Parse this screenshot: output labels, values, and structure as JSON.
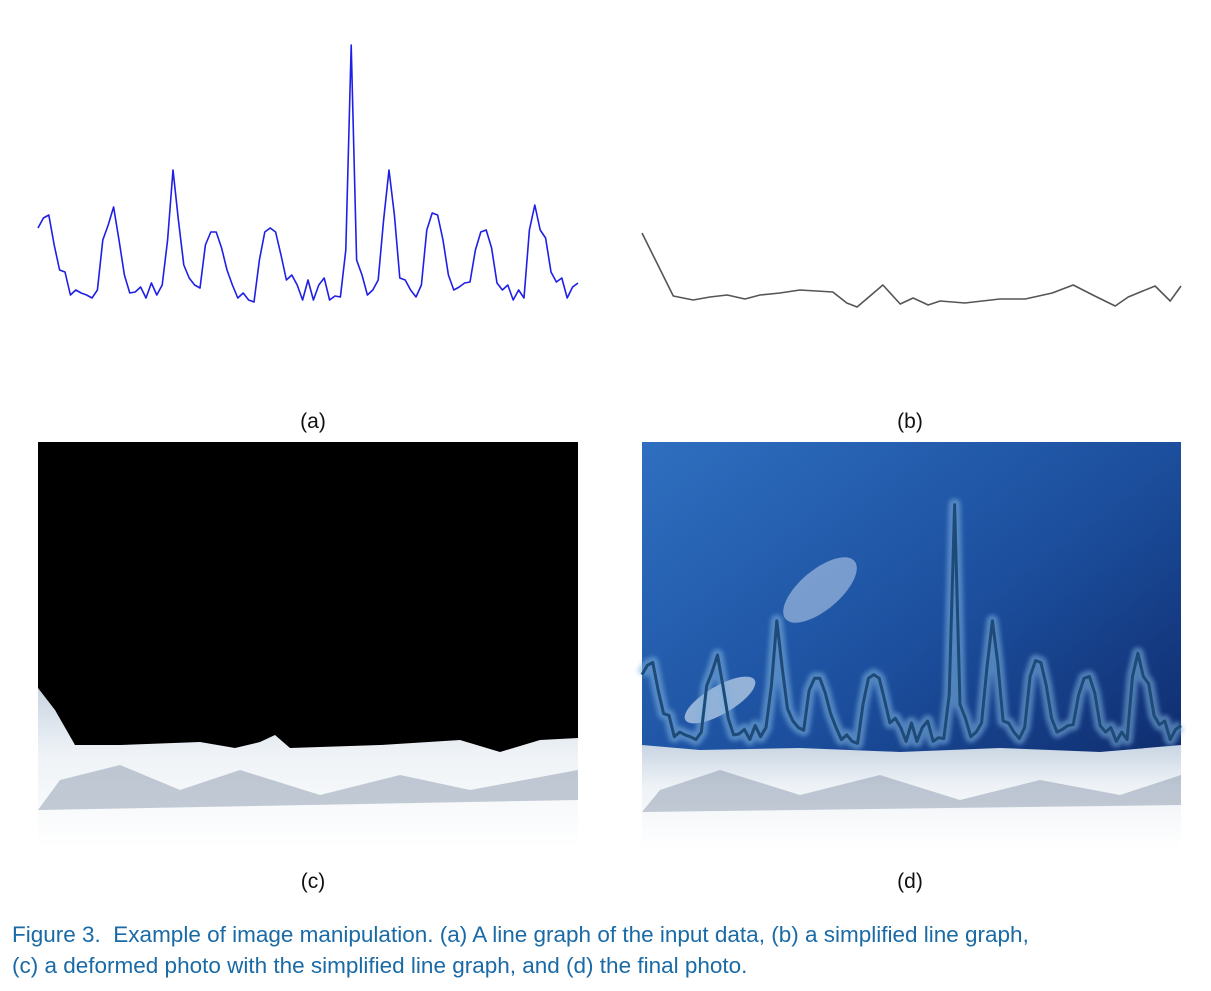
{
  "chart_data": [
    {
      "type": "line",
      "color": "#1f1fe6",
      "values": [
        92,
        102,
        105,
        75,
        50,
        48,
        25,
        30,
        27,
        25,
        22,
        30,
        80,
        95,
        113,
        80,
        45,
        27,
        28,
        33,
        22,
        37,
        25,
        35,
        80,
        150,
        100,
        55,
        42,
        35,
        32,
        75,
        88,
        88,
        72,
        50,
        35,
        22,
        27,
        20,
        18,
        60,
        88,
        92,
        88,
        65,
        40,
        45,
        35,
        20,
        40,
        20,
        35,
        42,
        20,
        24,
        23,
        70,
        275,
        60,
        45,
        25,
        30,
        40,
        100,
        150,
        105,
        42,
        40,
        30,
        23,
        35,
        90,
        107,
        105,
        80,
        45,
        30,
        33,
        37,
        38,
        70,
        88,
        90,
        72,
        37,
        30,
        35,
        20,
        30,
        22,
        90,
        115,
        90,
        82,
        48,
        38,
        42,
        22,
        33,
        37
      ],
      "ylim": [
        0,
        280
      ]
    },
    {
      "type": "line",
      "color": "#555555",
      "x": [
        0,
        5.8,
        9.5,
        12.6,
        15.8,
        19.1,
        21.9,
        25.6,
        29.3,
        35.4,
        38.0,
        39.9,
        44.7,
        47.9,
        50.3,
        53.1,
        55.3,
        59.9,
        66.4,
        71.1,
        76.1,
        80.0,
        84.0,
        87.8,
        90.2,
        95.2,
        98.0,
        100
      ],
      "values": [
        87,
        24,
        20,
        23,
        25,
        21,
        25,
        27,
        30,
        28,
        17,
        13,
        35,
        16,
        22,
        15,
        19,
        17,
        21,
        21,
        27,
        35,
        24,
        14,
        23,
        34,
        19,
        34
      ],
      "xlim": [
        0,
        100
      ],
      "ylim": [
        0,
        280
      ]
    }
  ],
  "panels": [
    {
      "label": "(a)"
    },
    {
      "label": "(b)"
    },
    {
      "label": "(c)"
    },
    {
      "label": "(d)"
    }
  ],
  "caption": [
    "Figure 3.  Example of image manipulation. (a) A line graph of the input data, (b) a simplified line graph,",
    "(c) a deformed photo with the simplified line graph, and (d) the final photo."
  ]
}
